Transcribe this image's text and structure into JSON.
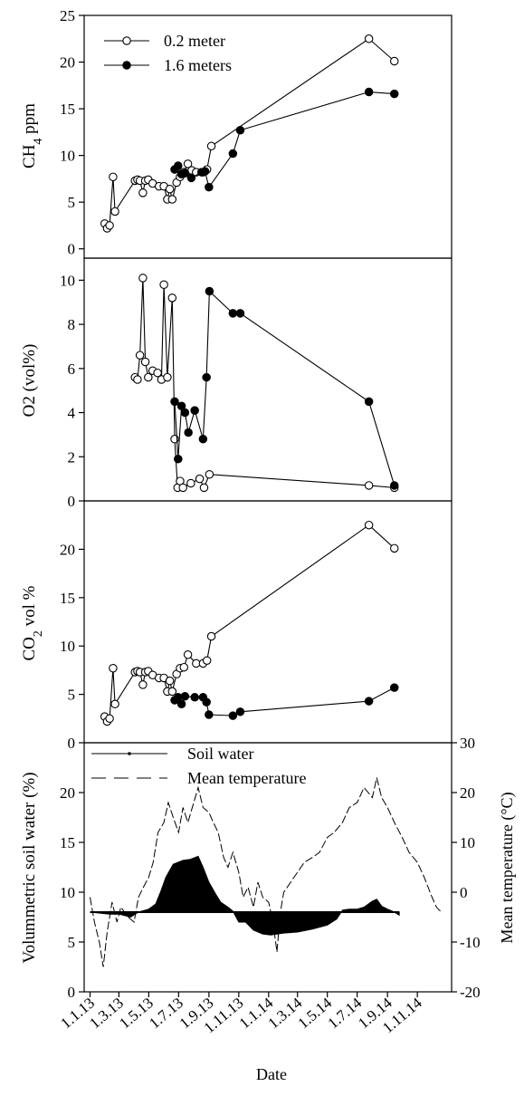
{
  "chart_data": [
    {
      "type": "line",
      "ylabel": "CH4 ppm",
      "ylabel_main": "CH",
      "ylabel_sub": "4",
      "ylabel_rest": " ppm",
      "ylim": [
        -1,
        25
      ],
      "yticks": [
        0,
        5,
        10,
        15,
        20,
        25
      ],
      "legend": {
        "placement": "top-left",
        "entries": [
          "0.2  meter",
          "1.6 meters"
        ]
      },
      "series": [
        {
          "name": "0.2  meter",
          "marker": "open-circle",
          "points": [
            [
              "2013-01-31",
              2.7
            ],
            [
              "2013-02-05",
              2.2
            ],
            [
              "2013-02-10",
              2.5
            ],
            [
              "2013-02-17",
              7.7
            ],
            [
              "2013-02-21",
              4.0
            ],
            [
              "2013-04-03",
              7.3
            ],
            [
              "2013-04-08",
              7.4
            ],
            [
              "2013-04-13",
              7.3
            ],
            [
              "2013-04-19",
              6.0
            ],
            [
              "2013-04-24",
              7.3
            ],
            [
              "2013-04-30",
              7.4
            ],
            [
              "2013-05-09",
              7.0
            ],
            [
              "2013-05-22",
              6.7
            ],
            [
              "2013-06-01",
              6.7
            ],
            [
              "2013-06-08",
              5.3
            ],
            [
              "2013-06-13",
              6.4
            ],
            [
              "2013-06-18",
              5.3
            ],
            [
              "2013-06-27",
              7.1
            ],
            [
              "2013-07-04",
              7.7
            ],
            [
              "2013-07-12",
              8.2
            ],
            [
              "2013-07-20",
              9.1
            ],
            [
              "2013-07-28",
              8.4
            ],
            [
              "2013-08-06",
              8.2
            ],
            [
              "2013-08-20",
              8.2
            ],
            [
              "2013-08-28",
              8.5
            ],
            [
              "2013-09-06",
              11.0
            ],
            [
              "2014-07-25",
              22.5
            ],
            [
              "2014-09-15",
              20.1
            ]
          ]
        },
        {
          "name": "1.6 meters",
          "marker": "filled-circle",
          "points": [
            [
              "2013-06-23",
              8.5
            ],
            [
              "2013-06-30",
              8.9
            ],
            [
              "2013-07-07",
              8.0
            ],
            [
              "2013-07-14",
              8.1
            ],
            [
              "2013-07-27",
              7.6
            ],
            [
              "2013-08-17",
              8.2
            ],
            [
              "2013-08-24",
              8.3
            ],
            [
              "2013-09-01",
              6.6
            ],
            [
              "2013-10-20",
              10.2
            ],
            [
              "2013-11-04",
              12.7
            ],
            [
              "2014-07-25",
              16.8
            ],
            [
              "2014-09-15",
              16.6
            ]
          ]
        }
      ]
    },
    {
      "type": "line",
      "ylabel": "O2 (vol%)",
      "ylim": [
        0,
        11
      ],
      "yticks": [
        0,
        2,
        4,
        6,
        8,
        10
      ],
      "series": [
        {
          "name": "0.2  meter",
          "marker": "open-circle",
          "points": [
            [
              "2013-04-03",
              5.6
            ],
            [
              "2013-04-08",
              5.5
            ],
            [
              "2013-04-13",
              6.6
            ],
            [
              "2013-04-19",
              10.1
            ],
            [
              "2013-04-24",
              6.3
            ],
            [
              "2013-04-30",
              5.6
            ],
            [
              "2013-05-09",
              5.9
            ],
            [
              "2013-05-19",
              5.8
            ],
            [
              "2013-05-27",
              5.5
            ],
            [
              "2013-06-01",
              9.8
            ],
            [
              "2013-06-08",
              5.6
            ],
            [
              "2013-06-18",
              9.2
            ],
            [
              "2013-06-23",
              2.8
            ],
            [
              "2013-06-29",
              0.6
            ],
            [
              "2013-07-04",
              0.9
            ],
            [
              "2013-07-10",
              0.6
            ],
            [
              "2013-07-26",
              0.8
            ],
            [
              "2013-08-13",
              1.0
            ],
            [
              "2013-08-22",
              0.6
            ],
            [
              "2013-09-02",
              1.2
            ],
            [
              "2014-07-25",
              0.7
            ],
            [
              "2014-09-15",
              0.6
            ]
          ]
        },
        {
          "name": "1.6 meters",
          "marker": "filled-circle",
          "points": [
            [
              "2013-06-23",
              4.5
            ],
            [
              "2013-06-30",
              1.9
            ],
            [
              "2013-07-07",
              4.3
            ],
            [
              "2013-07-14",
              4.0
            ],
            [
              "2013-07-21",
              3.1
            ],
            [
              "2013-08-03",
              4.1
            ],
            [
              "2013-08-20",
              2.8
            ],
            [
              "2013-08-27",
              5.6
            ],
            [
              "2013-09-02",
              9.5
            ],
            [
              "2013-10-20",
              8.5
            ],
            [
              "2013-11-04",
              8.5
            ],
            [
              "2014-07-25",
              4.5
            ],
            [
              "2014-09-15",
              0.7
            ]
          ]
        }
      ]
    },
    {
      "type": "line",
      "ylabel": "CO2 vol %",
      "ylabel_main": "CO",
      "ylabel_sub": "2",
      "ylabel_rest": " vol %",
      "ylim": [
        0,
        25
      ],
      "yticks": [
        0,
        5,
        10,
        15,
        20
      ],
      "series": [
        {
          "name": "0.2  meter",
          "marker": "open-circle",
          "points": [
            [
              "2013-01-31",
              2.7
            ],
            [
              "2013-02-05",
              2.2
            ],
            [
              "2013-02-10",
              2.5
            ],
            [
              "2013-02-17",
              7.7
            ],
            [
              "2013-02-21",
              4.0
            ],
            [
              "2013-04-03",
              7.3
            ],
            [
              "2013-04-08",
              7.4
            ],
            [
              "2013-04-13",
              7.3
            ],
            [
              "2013-04-19",
              6.0
            ],
            [
              "2013-04-24",
              7.3
            ],
            [
              "2013-04-30",
              7.4
            ],
            [
              "2013-05-09",
              7.0
            ],
            [
              "2013-05-22",
              6.7
            ],
            [
              "2013-06-01",
              6.7
            ],
            [
              "2013-06-08",
              5.3
            ],
            [
              "2013-06-13",
              6.4
            ],
            [
              "2013-06-18",
              5.3
            ],
            [
              "2013-06-27",
              7.1
            ],
            [
              "2013-07-04",
              7.7
            ],
            [
              "2013-07-12",
              7.8
            ],
            [
              "2013-07-20",
              9.1
            ],
            [
              "2013-08-06",
              8.2
            ],
            [
              "2013-08-20",
              8.2
            ],
            [
              "2013-08-28",
              8.5
            ],
            [
              "2013-09-06",
              11.0
            ],
            [
              "2014-07-25",
              22.5
            ],
            [
              "2014-09-15",
              20.1
            ]
          ]
        },
        {
          "name": "1.6 meters",
          "marker": "filled-circle",
          "points": [
            [
              "2013-06-23",
              4.4
            ],
            [
              "2013-06-30",
              4.7
            ],
            [
              "2013-07-07",
              4.0
            ],
            [
              "2013-07-14",
              4.8
            ],
            [
              "2013-08-03",
              4.7
            ],
            [
              "2013-08-20",
              4.7
            ],
            [
              "2013-08-27",
              4.2
            ],
            [
              "2013-09-01",
              2.9
            ],
            [
              "2013-10-20",
              2.8
            ],
            [
              "2013-11-04",
              3.2
            ],
            [
              "2014-07-25",
              4.3
            ],
            [
              "2014-09-15",
              5.7
            ]
          ]
        }
      ]
    },
    {
      "type": "line",
      "ylabel": "Volummetric soil water (%)",
      "ylabel_right": "Mean temperature (°C)",
      "xlabel": "Date",
      "ylim": [
        0,
        25
      ],
      "ylim_right": [
        -20,
        30
      ],
      "yticks": [
        0,
        5,
        10,
        15,
        20
      ],
      "yticks_right": [
        -20,
        -10,
        0,
        10,
        20,
        30
      ],
      "xticks": [
        "2013-01-01",
        "2013-03-01",
        "2013-05-01",
        "2013-07-01",
        "2013-09-01",
        "2013-11-01",
        "2014-01-01",
        "2014-03-01",
        "2014-05-01",
        "2014-07-01",
        "2014-09-01",
        "2014-11-01"
      ],
      "xtick_labels": [
        "1.1.13",
        "1.3.13",
        "1.5.13",
        "1.7.13",
        "1.9.13",
        "1.11.13",
        "1.1.14",
        "1.3.14",
        "1.5.14",
        "1.7.14",
        "1.9.14",
        "1.11.14"
      ],
      "xlim": [
        "2012-12-20",
        "2015-01-10"
      ],
      "legend": {
        "placement": "top-left",
        "entries": [
          "Soil water",
          "Mean temperature"
        ]
      },
      "series": [
        {
          "name": "Soil water",
          "style": "filled band from 8 %",
          "axis": "left",
          "points": [
            [
              "2013-01-01",
              8.0
            ],
            [
              "2013-02-10",
              7.8
            ],
            [
              "2013-03-01",
              7.8
            ],
            [
              "2013-03-25",
              7.5
            ],
            [
              "2013-04-10",
              8.0
            ],
            [
              "2013-05-01",
              8.3
            ],
            [
              "2013-05-15",
              8.8
            ],
            [
              "2013-05-25",
              10.0
            ],
            [
              "2013-06-05",
              11.5
            ],
            [
              "2013-06-20",
              12.8
            ],
            [
              "2013-07-10",
              13.2
            ],
            [
              "2013-07-25",
              13.3
            ],
            [
              "2013-08-10",
              13.6
            ],
            [
              "2013-08-20",
              12.5
            ],
            [
              "2013-09-01",
              11.0
            ],
            [
              "2013-09-15",
              9.8
            ],
            [
              "2013-09-25",
              9.0
            ],
            [
              "2013-10-10",
              8.5
            ],
            [
              "2013-10-20",
              8.1
            ],
            [
              "2013-11-01",
              7.0
            ],
            [
              "2013-11-15",
              7.0
            ],
            [
              "2013-12-01",
              6.2
            ],
            [
              "2013-12-20",
              5.8
            ],
            [
              "2014-01-05",
              5.7
            ],
            [
              "2014-02-01",
              5.9
            ],
            [
              "2014-03-01",
              6.0
            ],
            [
              "2014-04-01",
              6.3
            ],
            [
              "2014-05-01",
              6.7
            ],
            [
              "2014-05-20",
              7.3
            ],
            [
              "2014-06-01",
              8.2
            ],
            [
              "2014-06-15",
              8.3
            ],
            [
              "2014-07-01",
              8.3
            ],
            [
              "2014-07-15",
              8.5
            ],
            [
              "2014-08-01",
              9.1
            ],
            [
              "2014-08-10",
              9.3
            ],
            [
              "2014-08-20",
              8.6
            ],
            [
              "2014-09-01",
              8.3
            ],
            [
              "2014-09-15",
              8.0
            ],
            [
              "2014-09-25",
              7.7
            ]
          ]
        },
        {
          "name": "Mean temperature",
          "style": "dashed",
          "axis": "right",
          "points": [
            [
              "2013-01-01",
              -1
            ],
            [
              "2013-01-10",
              -6
            ],
            [
              "2013-01-20",
              -10
            ],
            [
              "2013-01-28",
              -15
            ],
            [
              "2013-02-05",
              -8
            ],
            [
              "2013-02-15",
              -2
            ],
            [
              "2013-02-25",
              -6
            ],
            [
              "2013-03-05",
              -3
            ],
            [
              "2013-03-20",
              -5
            ],
            [
              "2013-04-01",
              -6
            ],
            [
              "2013-04-10",
              -1
            ],
            [
              "2013-04-20",
              1
            ],
            [
              "2013-05-01",
              3
            ],
            [
              "2013-05-10",
              6
            ],
            [
              "2013-05-20",
              12
            ],
            [
              "2013-06-01",
              14
            ],
            [
              "2013-06-10",
              18
            ],
            [
              "2013-06-20",
              15
            ],
            [
              "2013-07-01",
              12
            ],
            [
              "2013-07-10",
              17
            ],
            [
              "2013-07-20",
              14
            ],
            [
              "2013-08-01",
              18
            ],
            [
              "2013-08-10",
              21
            ],
            [
              "2013-08-20",
              17
            ],
            [
              "2013-09-01",
              16
            ],
            [
              "2013-09-10",
              14
            ],
            [
              "2013-09-20",
              12
            ],
            [
              "2013-10-01",
              7
            ],
            [
              "2013-10-10",
              5
            ],
            [
              "2013-10-20",
              8
            ],
            [
              "2013-11-01",
              4
            ],
            [
              "2013-11-10",
              -1
            ],
            [
              "2013-11-20",
              1
            ],
            [
              "2013-12-01",
              -3
            ],
            [
              "2013-12-10",
              2
            ],
            [
              "2013-12-20",
              -1
            ],
            [
              "2014-01-01",
              -2
            ],
            [
              "2014-01-10",
              -6
            ],
            [
              "2014-01-18",
              -12
            ],
            [
              "2014-01-25",
              -4
            ],
            [
              "2014-02-01",
              0
            ],
            [
              "2014-02-15",
              2
            ],
            [
              "2014-03-01",
              4
            ],
            [
              "2014-03-15",
              6
            ],
            [
              "2014-04-01",
              7
            ],
            [
              "2014-04-15",
              8
            ],
            [
              "2014-05-01",
              11
            ],
            [
              "2014-05-15",
              12
            ],
            [
              "2014-06-01",
              14
            ],
            [
              "2014-06-15",
              17
            ],
            [
              "2014-07-01",
              18
            ],
            [
              "2014-07-15",
              21
            ],
            [
              "2014-08-01",
              19
            ],
            [
              "2014-08-10",
              23
            ],
            [
              "2014-08-20",
              19
            ],
            [
              "2014-09-01",
              17
            ],
            [
              "2014-09-15",
              14
            ],
            [
              "2014-10-01",
              11
            ],
            [
              "2014-10-15",
              8
            ],
            [
              "2014-11-01",
              6
            ],
            [
              "2014-11-15",
              3
            ],
            [
              "2014-12-01",
              -1
            ],
            [
              "2014-12-10",
              -3
            ],
            [
              "2014-12-20",
              -4
            ]
          ]
        }
      ]
    }
  ]
}
